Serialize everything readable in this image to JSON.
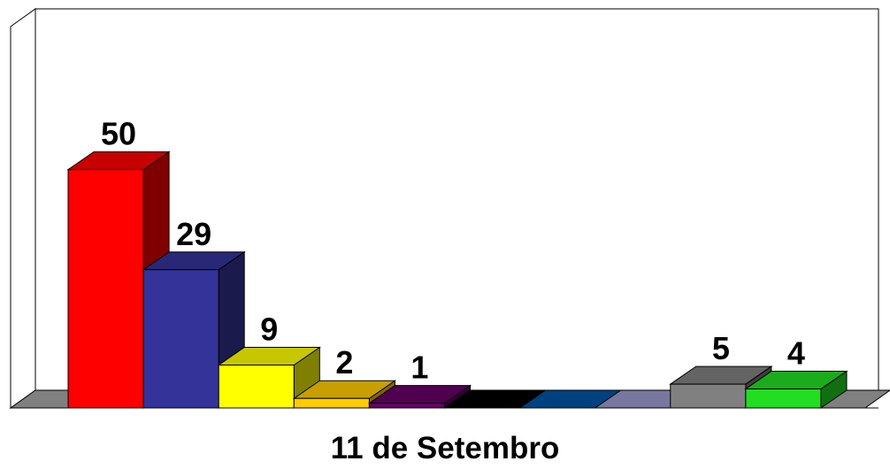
{
  "chart_data": {
    "type": "bar3d",
    "x_label": "11 de Setembro",
    "categories": [
      null,
      null,
      null,
      null,
      null,
      null,
      null,
      null,
      null,
      null
    ],
    "values": [
      50,
      29,
      9,
      2,
      1,
      0,
      0,
      0,
      5,
      4
    ],
    "colors": [
      "#ff0000",
      "#333399",
      "#ffff00",
      "#ffcc00",
      "#660066",
      "#000000",
      "#0055a5",
      "#9999cc",
      "#808080",
      "#22dd22"
    ],
    "ylim": [
      0,
      80
    ]
  }
}
